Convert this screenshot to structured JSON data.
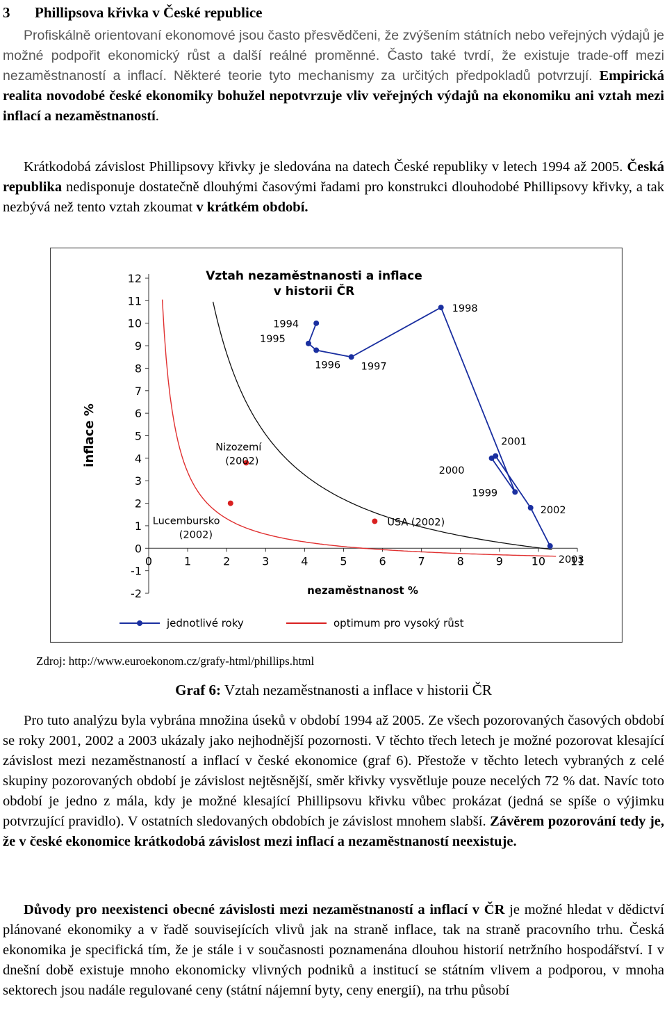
{
  "heading": {
    "number": "3",
    "title": "Phillipsova křivka v České republice"
  },
  "para1": {
    "text": "Profiskálně orientovaní ekonomové jsou často přesvědčeni, že zvýšením státních nebo veřejných výdajů je možné podpořit ekonomický růst a další reálné proměnné. Často také tvrdí, že existuje trade-off mezi nezaměstnaností a inflací. Některé teorie tyto mechanismy za určitých předpokladů potvrzují.",
    "bold": "Empirická realita novodobé české ekonomiky bohužel nepotvrzuje vliv veřejných výdajů na ekonomiku ani vztah mezi inflací a nezaměstnaností",
    "end": "."
  },
  "para2": {
    "t1": "Krátkodobá závislost Phillipsovy křivky je sledována na datech České republiky v letech 1994 až 2005. ",
    "b1": "Česká republika",
    "t2": " nedisponuje dostatečně dlouhými časovými řadami pro konstrukci dlouhodobé Phillipsovy křivky, a tak nezbývá než tento vztah zkoumat ",
    "b2": "v krátkém období."
  },
  "chart_data": {
    "type": "scatter",
    "title": "Vztah nezaměstnanosti a inflace v historii ČR",
    "xlabel": "nezaměstnanost %",
    "ylabel": "inflace %",
    "xlim": [
      0,
      11
    ],
    "ylim": [
      -2,
      12
    ],
    "x_ticks": [
      "0",
      "1",
      "2",
      "3",
      "4",
      "5",
      "6",
      "7",
      "8",
      "9",
      "10",
      "11"
    ],
    "y_ticks": [
      "-2",
      "-1",
      "0",
      "1",
      "2",
      "3",
      "4",
      "5",
      "6",
      "7",
      "8",
      "9",
      "10",
      "11",
      "12"
    ],
    "series": [
      {
        "name": "jednotlivé roky",
        "color": "#1a2fa0",
        "points": [
          {
            "label": "1994",
            "x": 4.3,
            "y": 10.0
          },
          {
            "label": "1995",
            "x": 4.1,
            "y": 9.1
          },
          {
            "label": "1996",
            "x": 4.3,
            "y": 8.8
          },
          {
            "label": "1997",
            "x": 5.2,
            "y": 8.5
          },
          {
            "label": "1998",
            "x": 7.5,
            "y": 10.7
          },
          {
            "label": "1999",
            "x": 9.4,
            "y": 2.5
          },
          {
            "label": "2000",
            "x": 8.8,
            "y": 4.0
          },
          {
            "label": "2001",
            "x": 8.9,
            "y": 4.1
          },
          {
            "label": "2002",
            "x": 9.8,
            "y": 1.8
          },
          {
            "label": "2003",
            "x": 10.3,
            "y": 0.1
          }
        ]
      },
      {
        "name": "optimum pro vysoký růst",
        "color": "#d92020",
        "points": [
          {
            "label": "Lucembursko (2002)",
            "x": 2.1,
            "y": 2.0
          },
          {
            "label": "Nizozemí (2002)",
            "x": 2.5,
            "y": 3.8
          },
          {
            "label": "USA (2002)",
            "x": 5.8,
            "y": 1.2
          }
        ]
      }
    ],
    "curves": {
      "black_color": "#111111",
      "red_color": "#e03030"
    },
    "legend": [
      "jednotlivé roky",
      "optimum pro vysoký růst"
    ],
    "legend_position": "bottom"
  },
  "source": "Zdroj: http://www.euroekonom.cz/grafy-html/phillips.html",
  "caption": {
    "label": "Graf 6:",
    "text": " Vztah nezaměstnanosti a inflace v historii ČR"
  },
  "para3": {
    "t1": "Pro tuto analýzu byla vybrána množina úseků v období 1994 až 2005. Ze všech pozorovaných časových období se roky 2001, 2002 a 2003 ukázaly jako nejhodnější pozornosti. V těchto třech letech je možné pozorovat klesající závislost mezi nezaměstnaností a inflací v české ekonomice (graf 6). Přestože v těchto letech vybraných z celé skupiny pozorovaných období je závislost nejtěsnější, směr křivky vysvětluje pouze necelých 72 % dat. Navíc toto období je jedno z mála, kdy je možné klesající Phillipsovu křivku vůbec prokázat (jedná se spíše o výjimku potvrzující pravidlo). V ostatních sledovaných obdobích je závislost mnohem slabší. ",
    "b1": "Závěrem pozorování tedy je, že v české ekonomice krátkodobá závislost mezi inflací a nezaměstnaností neexistuje."
  },
  "para4": {
    "b1": "Důvody pro neexistenci obecné závislosti mezi nezaměstnaností a inflací v ČR",
    "t1": " je možné hledat v dědictví plánované ekonomiky a v řadě souvisejících vlivů jak na straně inflace, tak na straně pracovního trhu. Česká ekonomika je specifická tím, že je stále i v současnosti poznamenána dlouhou historií netržního hospodářství. I v dnešní době existuje mnoho ekonomicky vlivných podniků a institucí se státním vlivem a podporou, v mnoha sektorech jsou nadále regulované ceny (státní nájemní byty, ceny energií), na trhu působí"
  }
}
